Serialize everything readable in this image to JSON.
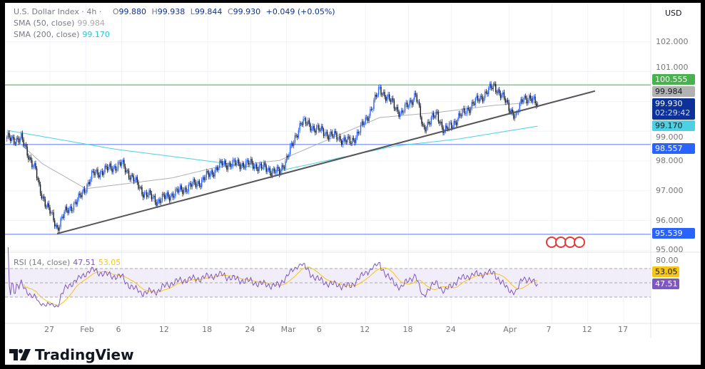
{
  "header": {
    "symbol": "U.S. Dollar Index · 4h ·",
    "open_label": "O",
    "open": "99.880",
    "high_label": "H",
    "high": "99.938",
    "low_label": "L",
    "low": "99.844",
    "close_label": "C",
    "close": "99.930",
    "change": "+0.049 (+0.05%)",
    "currency": "USD"
  },
  "indicators": {
    "sma50": {
      "label": "SMA (50, close)",
      "value": "99.984",
      "color": "#9e9e9e"
    },
    "sma200": {
      "label": "SMA (200, close)",
      "value": "99.170",
      "color": "#26c6da"
    },
    "rsi": {
      "label": "RSI (14, close)",
      "value": "47.51",
      "ma_value": "53.05",
      "color": "#7e57c2",
      "ma_color": "#f5c518",
      "axis_label": "80.00"
    }
  },
  "price_labels": {
    "resistance": {
      "value": "100.555",
      "color": "#4caf50"
    },
    "sma50": {
      "value": "99.984",
      "color": "#b2b2b2"
    },
    "last": {
      "value": "99.930",
      "countdown": "02:29:42",
      "color": "#0c3299"
    },
    "sma200": {
      "value": "99.170",
      "color": "#4dd0e1"
    },
    "support1": {
      "value": "98.557",
      "color": "#2962ff"
    },
    "support2": {
      "value": "95.539",
      "color": "#2962ff"
    }
  },
  "y_axis_ticks": [
    "102.000",
    "101.000",
    "99.000",
    "98.000",
    "97.000",
    "96.000",
    "95.000"
  ],
  "x_axis_ticks": [
    {
      "label": "27",
      "date": "2025-01-27"
    },
    {
      "label": "Feb",
      "date": "2025-02-01"
    },
    {
      "label": "6",
      "date": "2025-02-06"
    },
    {
      "label": "12",
      "date": "2025-02-12"
    },
    {
      "label": "18",
      "date": "2025-02-18"
    },
    {
      "label": "24",
      "date": "2025-02-24"
    },
    {
      "label": "Mar",
      "date": "2025-03-01"
    },
    {
      "label": "6",
      "date": "2025-03-06"
    },
    {
      "label": "12",
      "date": "2025-03-12"
    },
    {
      "label": "18",
      "date": "2025-03-18"
    },
    {
      "label": "24",
      "date": "2025-03-24"
    },
    {
      "label": "Apr",
      "date": "2025-04-01"
    },
    {
      "label": "7",
      "date": "2025-04-07"
    },
    {
      "label": "12",
      "date": "2025-04-12"
    },
    {
      "label": "17",
      "date": "2025-04-17"
    }
  ],
  "chart_data": {
    "type": "candlestick",
    "interval": "4h",
    "price_path": [
      [
        "2025-01-21",
        98.74
      ],
      [
        "2025-01-23",
        98.74
      ],
      [
        "2025-01-25",
        97.67
      ],
      [
        "2025-01-25.5",
        97.07
      ],
      [
        "2025-01-28",
        95.75
      ],
      [
        "2025-01-29",
        96.23
      ],
      [
        "2025-01-31",
        96.71
      ],
      [
        "2025-02-02",
        97.55
      ],
      [
        "2025-02-06",
        97.9
      ],
      [
        "2025-02-09",
        96.95
      ],
      [
        "2025-02-11",
        96.66
      ],
      [
        "2025-02-14",
        96.99
      ],
      [
        "2025-02-17",
        97.31
      ],
      [
        "2025-02-20",
        97.9
      ],
      [
        "2025-02-24",
        97.9
      ],
      [
        "2025-02-28",
        97.6
      ],
      [
        "2025-03-02",
        98.62
      ],
      [
        "2025-03-03",
        99.34
      ],
      [
        "2025-03-06",
        98.98
      ],
      [
        "2025-03-08",
        98.8
      ],
      [
        "2025-03-10",
        98.62
      ],
      [
        "2025-03-12",
        99.34
      ],
      [
        "2025-03-14",
        100.42
      ],
      [
        "2025-03-17",
        99.58
      ],
      [
        "2025-03-19",
        100.25
      ],
      [
        "2025-03-20",
        99.1
      ],
      [
        "2025-03-22",
        99.58
      ],
      [
        "2025-03-23",
        98.98
      ],
      [
        "2025-03-26",
        99.7
      ],
      [
        "2025-03-30",
        100.54
      ],
      [
        "2025-04-01",
        99.82
      ],
      [
        "2025-04-02",
        99.46
      ],
      [
        "2025-04-03",
        100.18
      ],
      [
        "2025-04-05",
        99.93
      ]
    ],
    "sma50_path": [
      [
        "2025-01-21",
        98.98
      ],
      [
        "2025-01-26",
        97.9
      ],
      [
        "2025-02-01",
        97.07
      ],
      [
        "2025-02-09",
        97.31
      ],
      [
        "2025-02-13",
        97.43
      ],
      [
        "2025-02-19",
        97.78
      ],
      [
        "2025-02-28",
        98.02
      ],
      [
        "2025-03-07",
        98.74
      ],
      [
        "2025-03-14",
        99.46
      ],
      [
        "2025-03-22",
        99.63
      ],
      [
        "2025-03-30",
        99.87
      ],
      [
        "2025-04-05",
        99.98
      ]
    ],
    "sma200_path": [
      [
        "2025-01-21",
        99.03
      ],
      [
        "2025-02-05",
        98.4
      ],
      [
        "2025-02-18",
        98.0
      ],
      [
        "2025-02-28",
        97.67
      ],
      [
        "2025-03-16",
        98.5
      ],
      [
        "2025-03-25",
        98.74
      ],
      [
        "2025-04-05",
        99.17
      ]
    ],
    "horizontal_levels": [
      100.555,
      98.557,
      95.539
    ],
    "trendline": [
      [
        "2025-01-28",
        95.56
      ],
      [
        "2025-04-13",
        100.35
      ]
    ],
    "y_range": [
      94.8,
      103.2
    ],
    "rsi_levels": [
      70,
      50,
      30
    ]
  },
  "branding": {
    "logo_text": "TradingView"
  }
}
